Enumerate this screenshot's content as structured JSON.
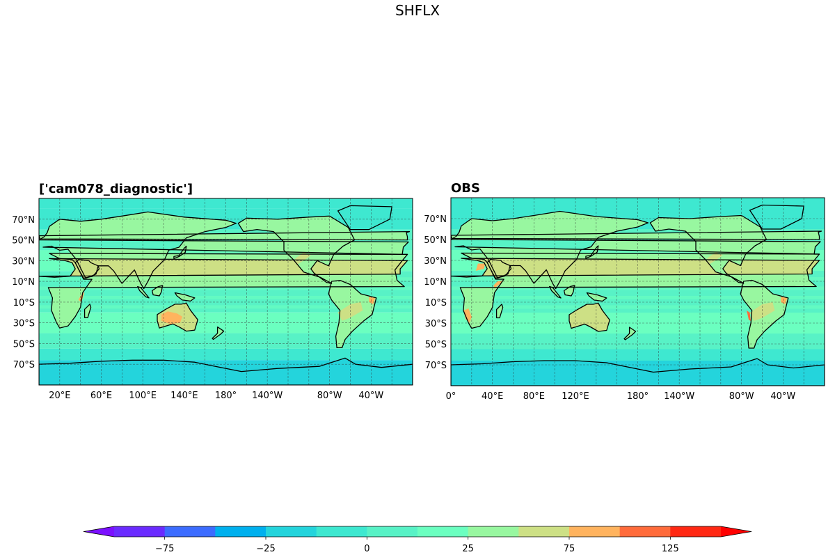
{
  "figure": {
    "suptitle": "SHFLX"
  },
  "chart_data": [
    {
      "type": "heatmap",
      "title": "['cam078_diagnostic']",
      "projection": "PlateCarree",
      "central_longitude": 0,
      "xticks": [
        "20°E",
        "60°E",
        "100°E",
        "140°E",
        "180°",
        "140°W",
        "80°W",
        "40°W"
      ],
      "yticks": [
        "70°N",
        "50°N",
        "30°N",
        "10°N",
        "10°S",
        "30°S",
        "50°S",
        "70°S"
      ],
      "xlim": [
        0,
        360
      ],
      "ylim": [
        -90,
        90
      ],
      "grid": true,
      "coastlines": true,
      "field": "SHFLX"
    },
    {
      "type": "heatmap",
      "title": "OBS",
      "projection": "PlateCarree",
      "central_longitude": 0,
      "xticks": [
        "0°",
        "40°E",
        "80°E",
        "120°E",
        "180°",
        "140°W",
        "80°W",
        "40°W"
      ],
      "yticks": [
        "70°N",
        "50°N",
        "30°N",
        "10°N",
        "10°S",
        "30°S",
        "50°S",
        "70°S"
      ],
      "xlim": [
        0,
        360
      ],
      "ylim": [
        -90,
        90
      ],
      "grid": true,
      "coastlines": true,
      "field": "SHFLX"
    }
  ],
  "colorbar": {
    "levels": [
      -100,
      -75,
      -50,
      -25,
      -12.5,
      0,
      12.5,
      25,
      50,
      75,
      100,
      125,
      150
    ],
    "colors": [
      "#6a2bff",
      "#3c6cff",
      "#00b0ee",
      "#24d4dc",
      "#3ee8d0",
      "#58f2c6",
      "#6bffc0",
      "#98f7a0",
      "#cde085",
      "#ffb35e",
      "#ff6b3b",
      "#ff2813"
    ],
    "under_color": "#7b10ff",
    "over_color": "#ff0000",
    "extend": "both",
    "tick_labels": [
      "−75",
      "−25",
      "0",
      "25",
      "75",
      "125"
    ],
    "tick_values": [
      -75,
      -25,
      0,
      25,
      75,
      125
    ]
  },
  "palette": {
    "ocean_base": "#58f2c6",
    "ocean_tropics": "#6bffc0",
    "ocean_cold": "#3ee8d0",
    "antarctic": "#24d4dc",
    "antarctic_deep": "#00b0ee",
    "arctic": "#3ee8d0",
    "land_warm": "#98f7a0",
    "land_hot": "#cde085",
    "land_hottest": "#ffb35e",
    "land_extreme": "#ff6b3b"
  }
}
